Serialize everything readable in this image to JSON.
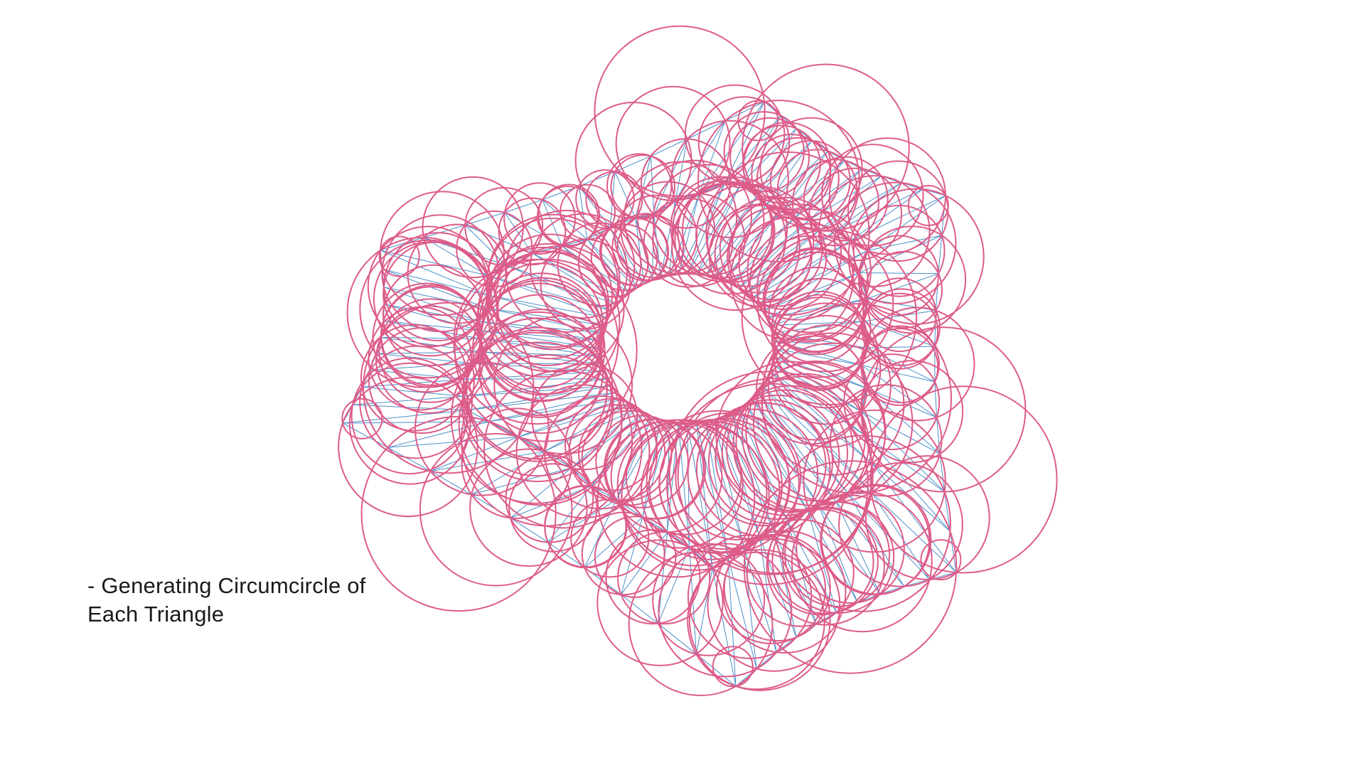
{
  "caption": {
    "line1": "- Generating Circumcircle of",
    "line2": "Each Triangle"
  },
  "colors": {
    "background": "#ffffff",
    "circle_stroke": "#dd5c8a",
    "triangle_stroke": "#4a8fc8",
    "text": "#1a1a1a"
  },
  "diagram": {
    "shape": "five-pointed ring with central hole",
    "elements": [
      "triangulation-mesh",
      "circumcircles"
    ]
  }
}
